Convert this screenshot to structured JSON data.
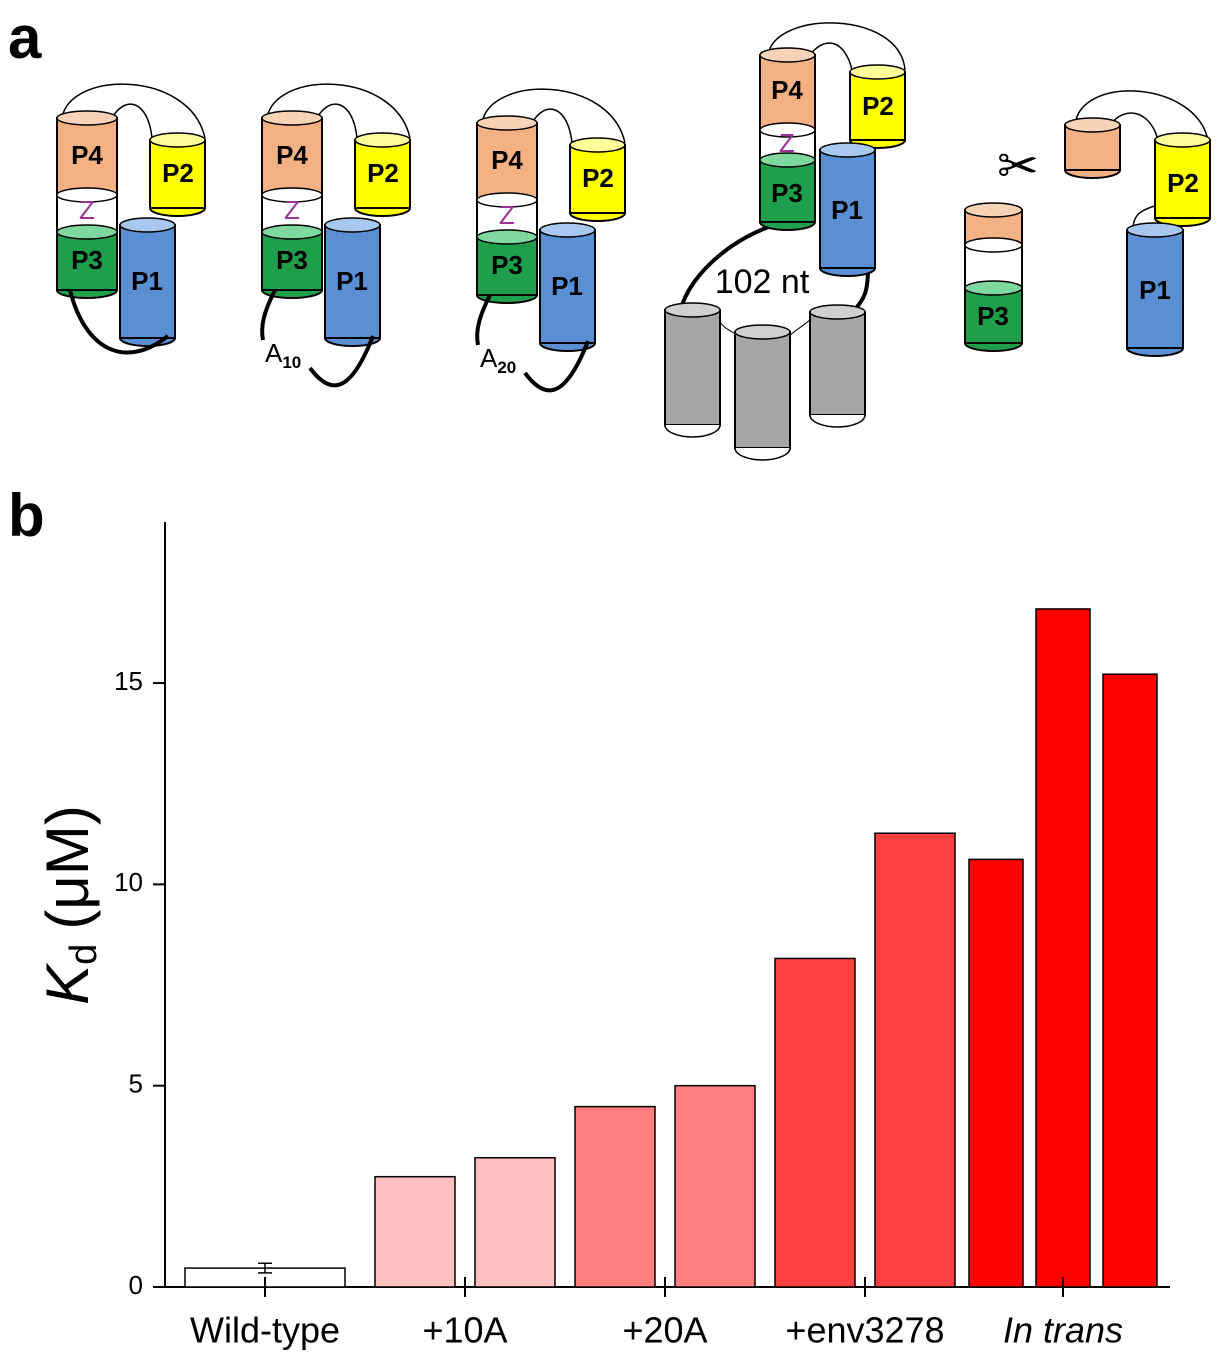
{
  "panels": [
    "a",
    "b"
  ],
  "diagram": {
    "structures": [
      {
        "labels": [
          "P4",
          "Z",
          "P3",
          "P2",
          "P1"
        ]
      },
      {
        "labels": [
          "P4",
          "Z",
          "P3",
          "P2",
          "P1"
        ],
        "linker": {
          "text": "A",
          "subscript": "10"
        }
      },
      {
        "labels": [
          "P4",
          "Z",
          "P3",
          "P2",
          "P1"
        ],
        "linker": {
          "text": "A",
          "subscript": "20"
        }
      },
      {
        "labels": [
          "P4",
          "Z",
          "P3",
          "P2",
          "P1"
        ],
        "insert": "102 nt"
      },
      {
        "labels": [
          "P2",
          "P1",
          "P3"
        ]
      }
    ]
  },
  "chart_data": {
    "type": "bar",
    "ylabel": {
      "symbol": "K",
      "subscript": "d",
      "unit": "(μM)"
    },
    "ylim": [
      0,
      19
    ],
    "yticks": [
      0,
      5,
      10,
      15
    ],
    "groups": [
      {
        "label": "Wild-type",
        "color": "#ffffff",
        "values": [
          0.47
        ],
        "errors": [
          0.12
        ]
      },
      {
        "label": "+10A",
        "color": "#ffc0c0",
        "values": [
          2.74,
          3.21
        ]
      },
      {
        "label": "+20A",
        "color": "#ff7f7f",
        "values": [
          4.48,
          5.0
        ]
      },
      {
        "label": "+env3278",
        "color": "#ff4040",
        "values": [
          8.16,
          11.27
        ]
      },
      {
        "label": "In trans",
        "color": "#ff0000",
        "values": [
          10.62,
          16.84,
          15.22
        ],
        "italic": true
      }
    ]
  }
}
